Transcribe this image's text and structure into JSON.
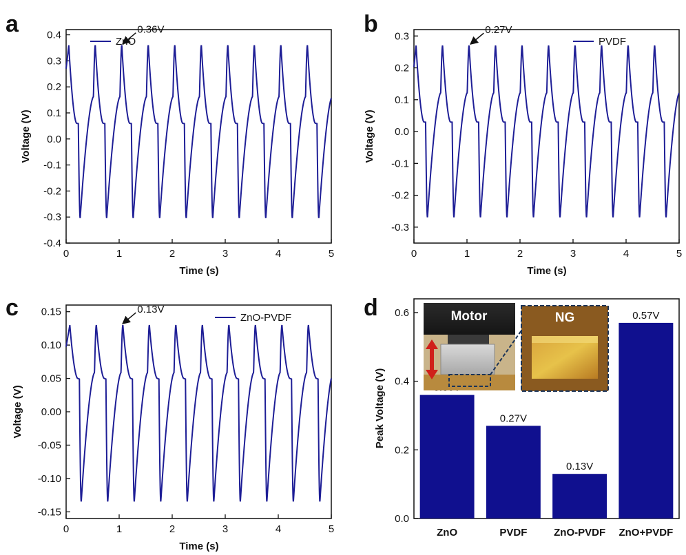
{
  "colors": {
    "line": "#1e1e96",
    "bar": "#10108f",
    "axis": "#111111",
    "arrow": "#c8281e"
  },
  "chart_data": [
    {
      "id": "a",
      "type": "line",
      "panel_label": "a",
      "xlabel": "Time (s)",
      "ylabel": "Voltage (V)",
      "xlim": [
        0,
        5
      ],
      "ylim": [
        -0.4,
        0.42
      ],
      "xticks": [
        0,
        1,
        2,
        3,
        4,
        5
      ],
      "yticks": [
        -0.4,
        -0.3,
        -0.2,
        -0.1,
        0.0,
        0.1,
        0.2,
        0.3,
        0.4
      ],
      "ytick_labels": [
        "-0.4",
        "-0.3",
        "-0.2",
        "-0.1",
        "0.0",
        "0.1",
        "0.2",
        "0.3",
        "0.4"
      ],
      "xtick_labels": [
        "0",
        "1",
        "2",
        "3",
        "4",
        "5"
      ],
      "grid": false,
      "legend_position": "top-right",
      "series": [
        {
          "name": "ZnO",
          "waveform": {
            "period_s": 0.5,
            "first_peak_s": 0.05,
            "peak_v": 0.36,
            "trough_v": -0.305,
            "shoulder_v": 0.06
          }
        }
      ],
      "annotation": {
        "text": "0.36V",
        "x": 1.03,
        "y": 0.36
      }
    },
    {
      "id": "b",
      "type": "line",
      "panel_label": "b",
      "xlabel": "Time (s)",
      "ylabel": "Voltage (V)",
      "xlim": [
        0,
        5
      ],
      "ylim": [
        -0.35,
        0.32
      ],
      "xticks": [
        0,
        1,
        2,
        3,
        4,
        5
      ],
      "yticks": [
        -0.3,
        -0.2,
        -0.1,
        0.0,
        0.1,
        0.2,
        0.3
      ],
      "ytick_labels": [
        "-0.3",
        "-0.2",
        "-0.1",
        "0.0",
        "0.1",
        "0.2",
        "0.3"
      ],
      "xtick_labels": [
        "0",
        "1",
        "2",
        "3",
        "4",
        "5"
      ],
      "grid": false,
      "legend_position": "top-right",
      "series": [
        {
          "name": "PVDF",
          "waveform": {
            "period_s": 0.5,
            "first_peak_s": 0.04,
            "peak_v": 0.27,
            "trough_v": -0.27,
            "shoulder_v": 0.03
          }
        }
      ],
      "annotation": {
        "text": "0.27V",
        "x": 1.03,
        "y": 0.27
      }
    },
    {
      "id": "c",
      "type": "line",
      "panel_label": "c",
      "xlabel": "Time (s)",
      "ylabel": "Voltage (V)",
      "xlim": [
        0,
        5
      ],
      "ylim": [
        -0.16,
        0.16
      ],
      "xticks": [
        0,
        1,
        2,
        3,
        4,
        5
      ],
      "yticks": [
        -0.15,
        -0.1,
        -0.05,
        0.0,
        0.05,
        0.1,
        0.15
      ],
      "ytick_labels": [
        "-0.15",
        "-0.10",
        "-0.05",
        "0.00",
        "0.05",
        "0.10",
        "0.15"
      ],
      "xtick_labels": [
        "0",
        "1",
        "2",
        "3",
        "4",
        "5"
      ],
      "grid": false,
      "legend_position": "top-right",
      "series": [
        {
          "name": "ZnO-PVDF",
          "waveform": {
            "period_s": 0.5,
            "first_peak_s": 0.07,
            "peak_v": 0.13,
            "trough_v": -0.135,
            "shoulder_v": 0.05
          }
        }
      ],
      "annotation": {
        "text": "0.13V",
        "x": 1.03,
        "y": 0.13
      }
    },
    {
      "id": "d",
      "type": "bar",
      "panel_label": "d",
      "xlabel": "",
      "ylabel": "Peak Voltage (V)",
      "ylim": [
        0,
        0.64
      ],
      "yticks": [
        0.0,
        0.2,
        0.4,
        0.6
      ],
      "ytick_labels": [
        "0.0",
        "0.2",
        "0.4",
        "0.6"
      ],
      "grid": false,
      "categories": [
        "ZnO",
        "PVDF",
        "ZnO-PVDF",
        "ZnO+PVDF"
      ],
      "values": [
        0.36,
        0.27,
        0.13,
        0.57
      ],
      "data_labels": [
        "0.36V",
        "0.27V",
        "0.13V",
        "0.57V"
      ],
      "inset": {
        "left_label": "Motor",
        "right_label": "NG"
      }
    }
  ]
}
